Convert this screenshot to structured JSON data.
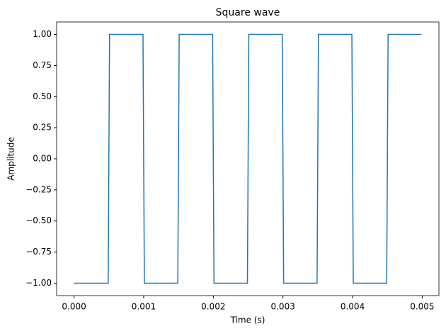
{
  "chart_data": {
    "type": "line",
    "title": "Square wave",
    "xlabel": "Time (s)",
    "ylabel": "Amplitude",
    "x": [
      0,
      0.00049,
      0.00051,
      0.00099,
      0.00101,
      0.00149,
      0.00151,
      0.00199,
      0.00201,
      0.00249,
      0.00251,
      0.00299,
      0.00301,
      0.00349,
      0.00351,
      0.00399,
      0.00401,
      0.00449,
      0.00451,
      0.00499
    ],
    "series": [
      {
        "name": "Square wave",
        "color": "#1f77b4",
        "values": [
          -1,
          -1,
          1,
          1,
          -1,
          -1,
          1,
          1,
          -1,
          -1,
          1,
          1,
          -1,
          -1,
          1,
          1,
          -1,
          -1,
          1,
          1
        ]
      }
    ],
    "xlim": [
      -0.00025,
      0.00524
    ],
    "ylim": [
      -1.1,
      1.1
    ],
    "xticks": [
      {
        "value": 0,
        "label": "0.000"
      },
      {
        "value": 0.001,
        "label": "0.001"
      },
      {
        "value": 0.002,
        "label": "0.002"
      },
      {
        "value": 0.003,
        "label": "0.003"
      },
      {
        "value": 0.004,
        "label": "0.004"
      },
      {
        "value": 0.005,
        "label": "0.005"
      }
    ],
    "yticks": [
      {
        "value": -1,
        "label": "−1.00"
      },
      {
        "value": -0.75,
        "label": "−0.75"
      },
      {
        "value": -0.5,
        "label": "−0.50"
      },
      {
        "value": -0.25,
        "label": "−0.25"
      },
      {
        "value": 0,
        "label": "0.00"
      },
      {
        "value": 0.25,
        "label": "0.25"
      },
      {
        "value": 0.5,
        "label": "0.50"
      },
      {
        "value": 0.75,
        "label": "0.75"
      },
      {
        "value": 1,
        "label": "1.00"
      }
    ],
    "grid": false
  }
}
